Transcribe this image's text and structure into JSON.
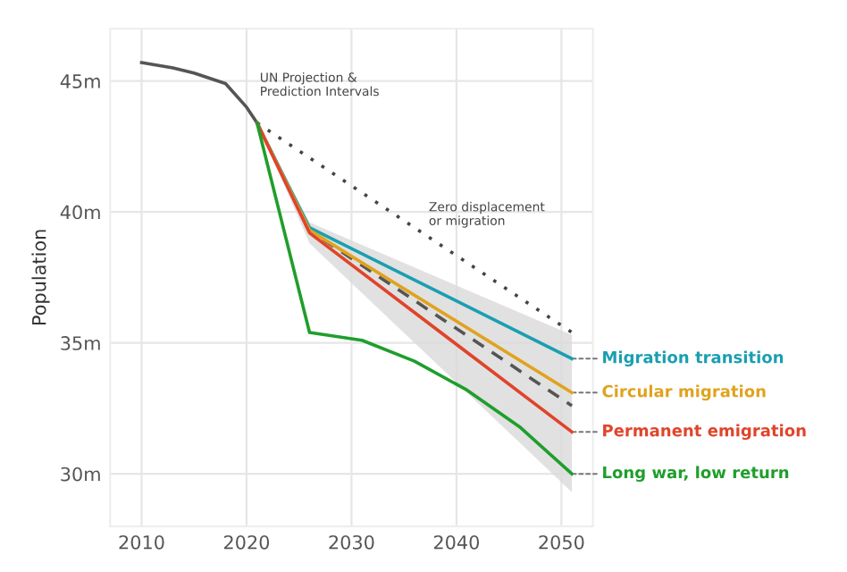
{
  "chart_data": {
    "type": "line",
    "ylabel": "Population",
    "xlim": [
      2007,
      2053
    ],
    "ylim": [
      28,
      47
    ],
    "xticks": [
      2010,
      2020,
      2030,
      2040,
      2050
    ],
    "yticks": [
      {
        "value": 30,
        "label": "30m"
      },
      {
        "value": 35,
        "label": "35m"
      },
      {
        "value": 40,
        "label": "40m"
      },
      {
        "value": 45,
        "label": "45m"
      }
    ],
    "grid": true,
    "legend": false,
    "annotations": [
      "UN Projection &\nPrediction Intervals",
      "Zero displacement\nor migration"
    ],
    "series": [
      {
        "color": "#555555",
        "line_style": "solid",
        "x": [
          2010,
          2013,
          2015,
          2018,
          2020,
          2021
        ],
        "values": [
          45.7,
          45.5,
          45.3,
          44.9,
          44.0,
          43.4
        ]
      },
      {
        "color": "#444444",
        "line_style": "dotted",
        "x": [
          2021,
          2051
        ],
        "values": [
          43.4,
          35.4
        ]
      },
      {
        "color": "#555555",
        "line_style": "dashed",
        "x": [
          2021,
          2026,
          2051
        ],
        "values": [
          43.4,
          39.3,
          32.6
        ],
        "lower": [
          43.4,
          38.8,
          29.3
        ],
        "upper": [
          43.4,
          39.6,
          35.3
        ]
      },
      {
        "name": "Migration transition",
        "color": "#1a9fb0",
        "line_style": "solid",
        "x": [
          2021,
          2026,
          2051
        ],
        "values": [
          43.4,
          39.4,
          34.4
        ]
      },
      {
        "name": "Circular migration",
        "color": "#e0a31f",
        "line_style": "solid",
        "x": [
          2021,
          2026,
          2051
        ],
        "values": [
          43.4,
          39.3,
          33.1
        ]
      },
      {
        "name": "Permanent emigration",
        "color": "#e0442a",
        "line_style": "solid",
        "x": [
          2021,
          2026,
          2051
        ],
        "values": [
          43.4,
          39.2,
          31.6
        ]
      },
      {
        "name": "Long war, low return",
        "color": "#1f9e2c",
        "line_style": "solid",
        "x": [
          2021,
          2026,
          2031,
          2036,
          2041,
          2046,
          2051
        ],
        "values": [
          43.4,
          35.4,
          35.1,
          34.3,
          33.2,
          31.8,
          30.0
        ]
      }
    ]
  }
}
